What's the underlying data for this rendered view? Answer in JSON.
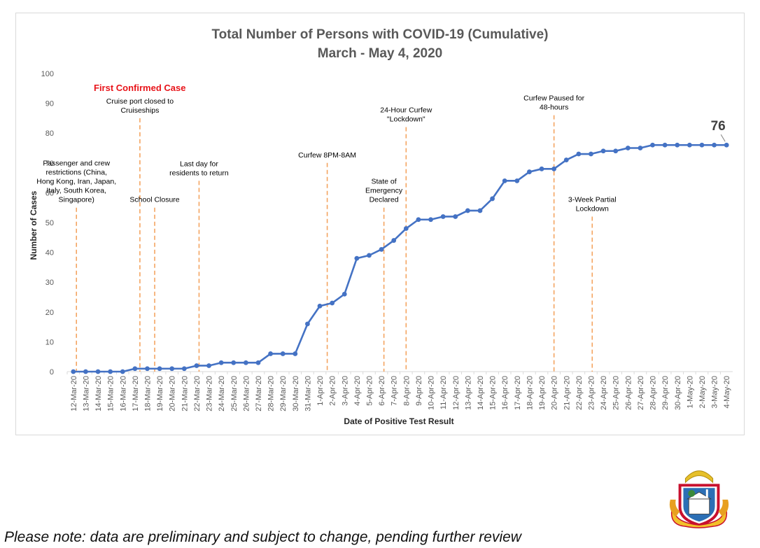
{
  "chart_data": {
    "type": "line",
    "title": "Total Number of Persons with COVID-19 (Cumulative)",
    "subtitle": "March - May 4, 2020",
    "xlabel": "Date of Positive Test Result",
    "ylabel": "Number of Cases",
    "ylim": [
      0,
      100
    ],
    "yticks": [
      0,
      10,
      20,
      30,
      40,
      50,
      60,
      70,
      80,
      90,
      100
    ],
    "grid": false,
    "line_color": "#4472c4",
    "annotation_line_color": "#f4a460",
    "categories": [
      "12-Mar-20",
      "13-Mar-20",
      "14-Mar-20",
      "15-Mar-20",
      "16-Mar-20",
      "17-Mar-20",
      "18-Mar-20",
      "19-Mar-20",
      "20-Mar-20",
      "21-Mar-20",
      "22-Mar-20",
      "23-Mar-20",
      "24-Mar-20",
      "25-Mar-20",
      "26-Mar-20",
      "27-Mar-20",
      "28-Mar-20",
      "29-Mar-20",
      "30-Mar-20",
      "31-Mar-20",
      "1-Apr-20",
      "2-Apr-20",
      "3-Apr-20",
      "4-Apr-20",
      "5-Apr-20",
      "6-Apr-20",
      "7-Apr-20",
      "8-Apr-20",
      "9-Apr-20",
      "10-Apr-20",
      "11-Apr-20",
      "12-Apr-20",
      "13-Apr-20",
      "14-Apr-20",
      "15-Apr-20",
      "16-Apr-20",
      "17-Apr-20",
      "18-Apr-20",
      "19-Apr-20",
      "20-Apr-20",
      "21-Apr-20",
      "22-Apr-20",
      "23-Apr-20",
      "24-Apr-20",
      "25-Apr-20",
      "26-Apr-20",
      "27-Apr-20",
      "28-Apr-20",
      "29-Apr-20",
      "30-Apr-20",
      "1-May-20",
      "2-May-20",
      "3-May-20",
      "4-May-20"
    ],
    "series": [
      {
        "values": [
          0,
          0,
          0,
          0,
          0,
          1,
          1,
          1,
          1,
          1,
          2,
          2,
          3,
          3,
          3,
          3,
          6,
          6,
          6,
          16,
          22,
          23,
          26,
          38,
          39,
          41,
          44,
          48,
          51,
          51,
          52,
          52,
          54,
          54,
          58,
          64,
          64,
          67,
          68,
          68,
          71,
          73,
          73,
          74,
          74,
          75,
          75,
          76,
          76,
          76,
          76,
          76,
          76,
          76
        ]
      }
    ],
    "end_label": "76",
    "annotations": [
      {
        "text": "First Confirmed Case",
        "style": "red",
        "x_index": 0.1,
        "line_top": null
      },
      {
        "text": [
          "Passenger and crew",
          "restrictions (China,",
          "Hong Kong, Iran, Japan,",
          "Italy, South Korea,",
          "Singapore)"
        ],
        "x_index": 0.25,
        "line_top": 55
      },
      {
        "text": [
          "Cruise port closed to",
          "Cruiseships"
        ],
        "x_index": 5.4,
        "line_top": 85
      },
      {
        "text": [
          "School Closure"
        ],
        "x_index": 6.6,
        "line_top": 55
      },
      {
        "text": [
          "Last day for",
          "residents to return"
        ],
        "x_index": 10.2,
        "line_top": 64
      },
      {
        "text": [
          "Curfew 8PM-8AM"
        ],
        "x_index": 20.6,
        "line_top": 70
      },
      {
        "text": [
          "State of",
          "Emergency",
          "Declared"
        ],
        "x_index": 25.2,
        "line_top": 55
      },
      {
        "text": [
          "24-Hour Curfew",
          "\"Lockdown\""
        ],
        "x_index": 27,
        "line_top": 82
      },
      {
        "text": [
          "Curfew Paused for",
          "48-hours"
        ],
        "x_index": 39,
        "line_top": 86
      },
      {
        "text": [
          "3-Week Partial",
          "Lockdown"
        ],
        "x_index": 42.1,
        "line_top": 52
      }
    ]
  },
  "footnote": "Please note: data are preliminary and subject to change, pending further review"
}
